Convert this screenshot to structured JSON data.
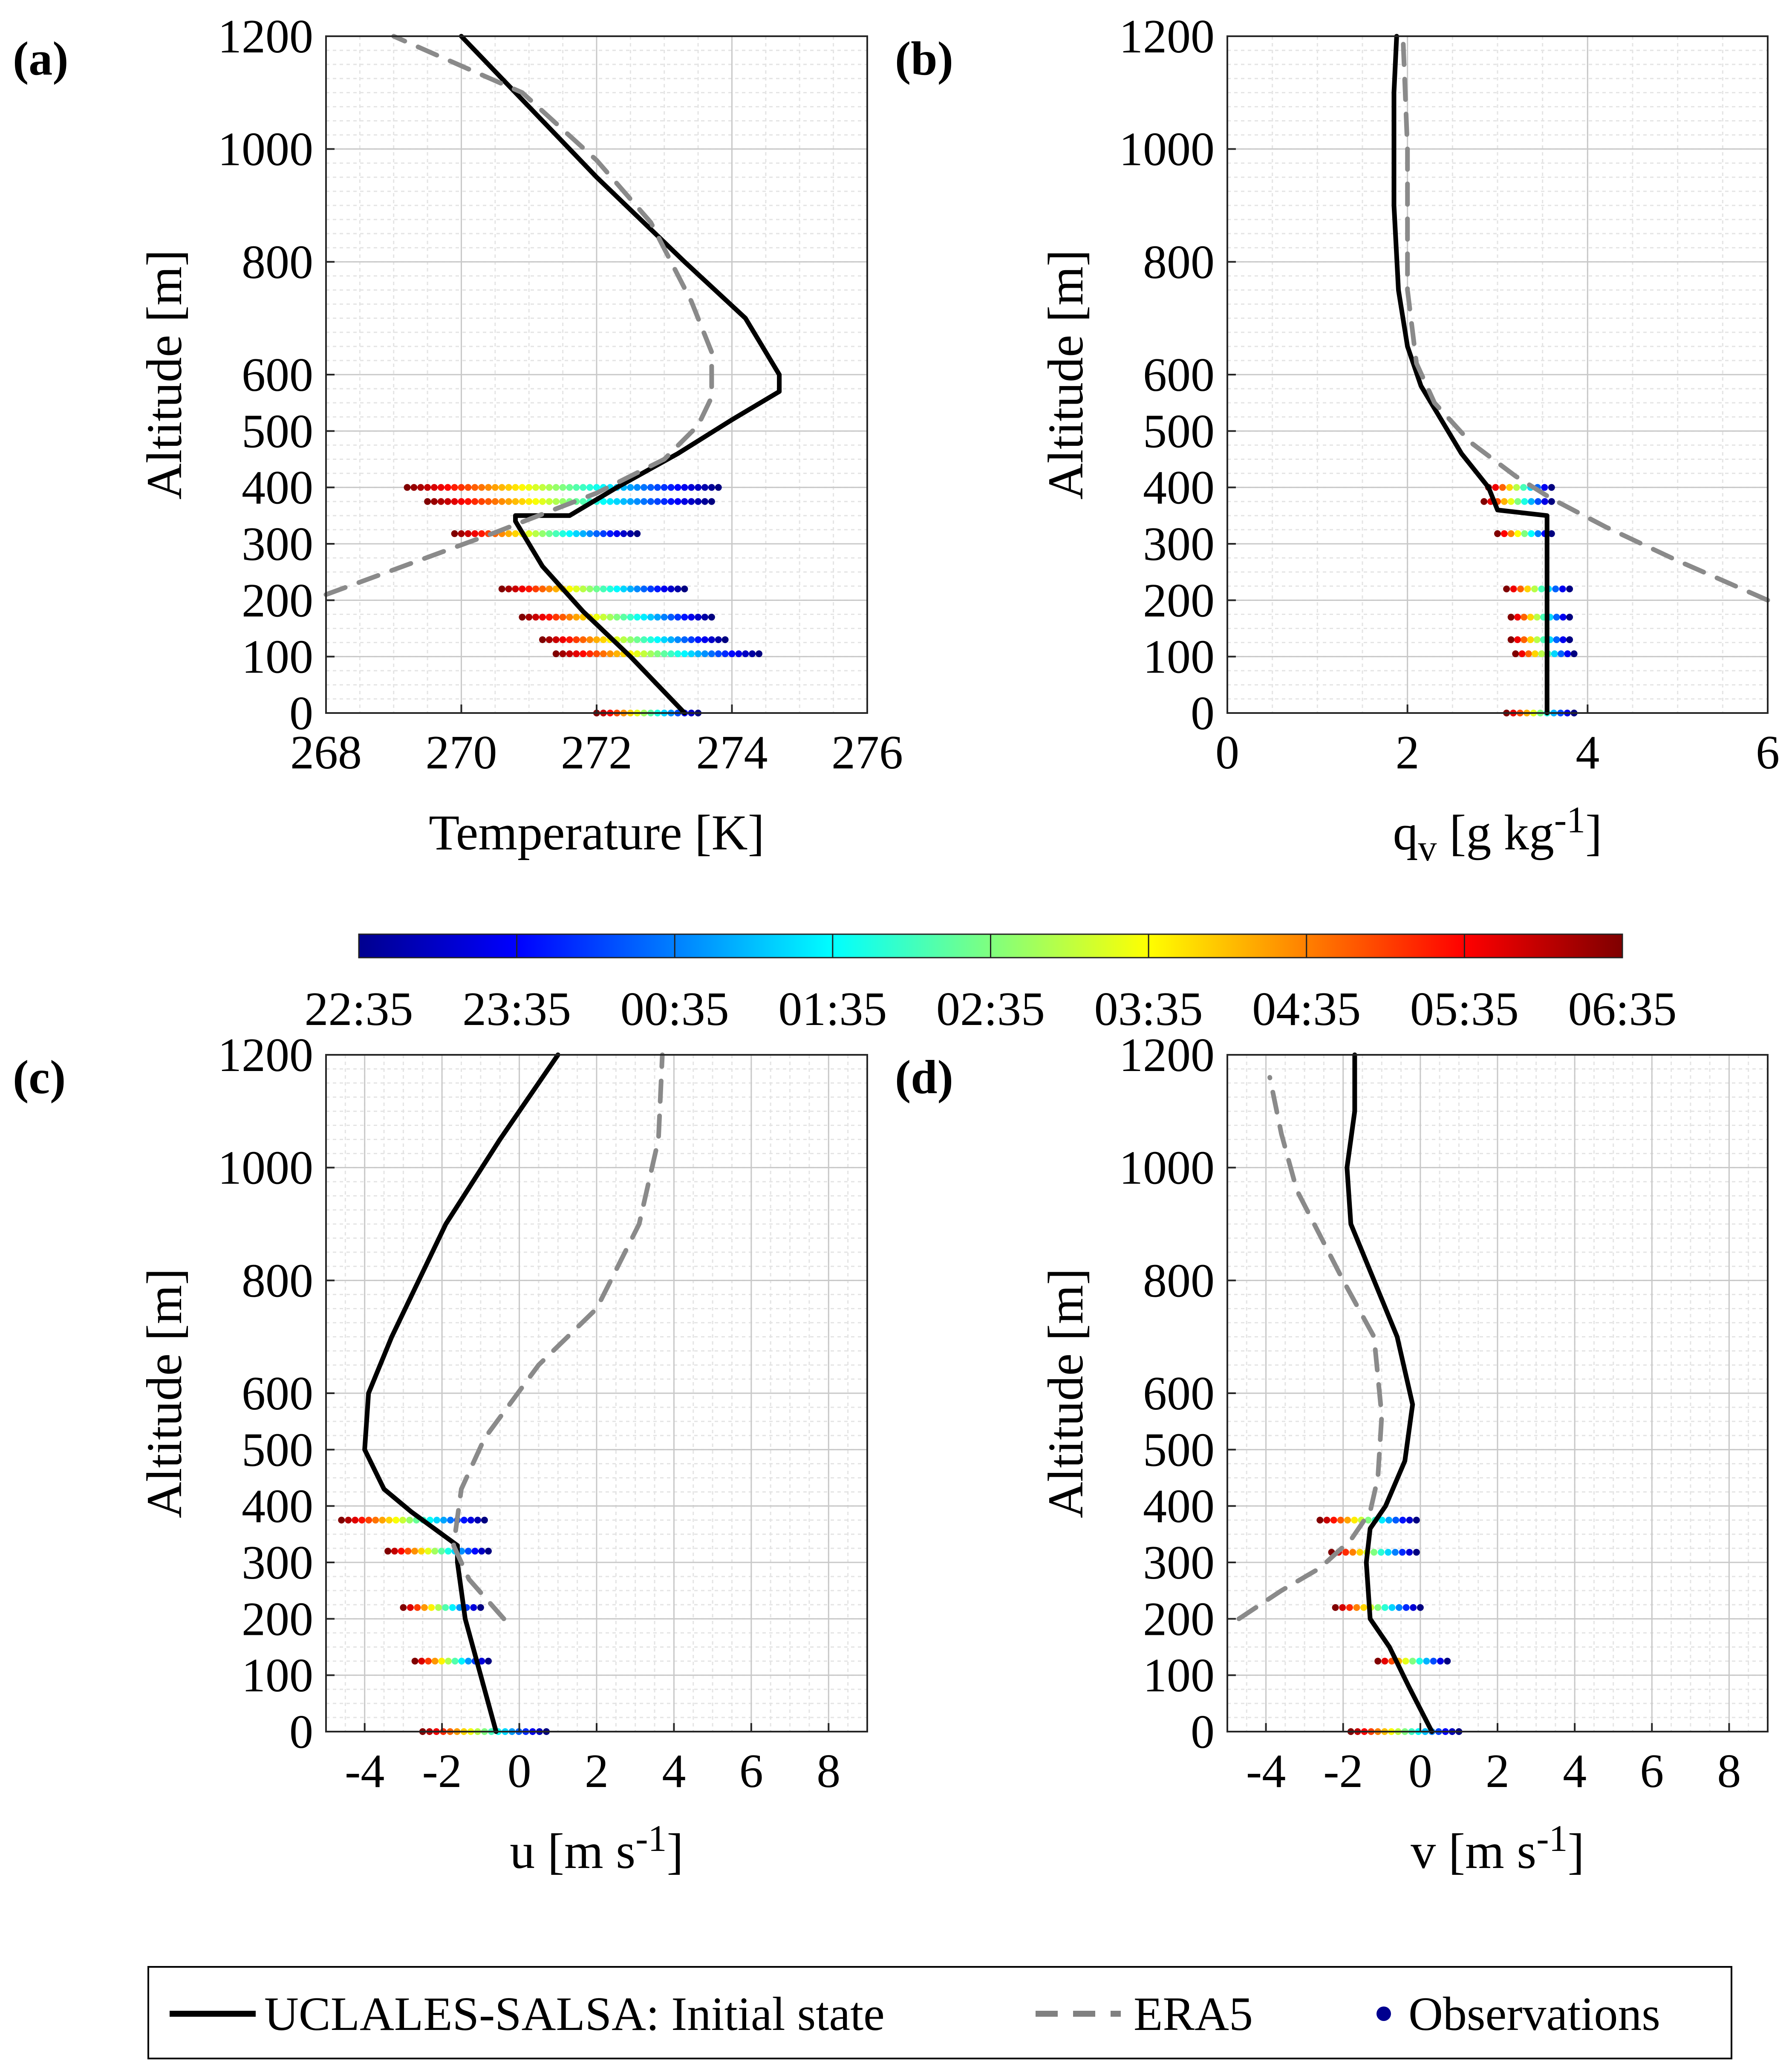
{
  "colorbar": {
    "ticks": [
      "22:35",
      "23:35",
      "00:35",
      "01:35",
      "02:35",
      "03:35",
      "04:35",
      "05:35",
      "06:35"
    ]
  },
  "legend": {
    "items": [
      {
        "label": "UCLALES-SALSA: Initial state",
        "style": "solid",
        "color": "#000000"
      },
      {
        "label": "ERA5",
        "style": "dashed",
        "color": "#808080"
      },
      {
        "label": "Observations",
        "style": "marker",
        "color": "#00008f"
      }
    ]
  },
  "chart_data": [
    {
      "type": "line",
      "panel_label": "(a)",
      "xlabel": "Temperature [K]",
      "ylabel": "Altitude [m]",
      "xlim": [
        268,
        276
      ],
      "ylim": [
        0,
        1200
      ],
      "xticks": [
        268,
        270,
        272,
        274,
        276
      ],
      "yticks": [
        0,
        100,
        200,
        300,
        400,
        500,
        600,
        800,
        1000,
        1200
      ],
      "grid": true,
      "series": [
        {
          "name": "UCLALES-SALSA: Initial state",
          "style": "solid",
          "x": [
            273.3,
            272.5,
            271.8,
            271.2,
            270.8,
            270.8,
            271.6,
            272.3,
            273.2,
            274.0,
            274.7,
            274.7,
            274.2,
            273.3,
            272.0,
            270.8,
            270.0
          ],
          "y": [
            0,
            100,
            180,
            260,
            340,
            350,
            350,
            400,
            460,
            520,
            570,
            600,
            700,
            800,
            950,
            1100,
            1200
          ]
        },
        {
          "name": "ERA5",
          "style": "dashed",
          "x": [
            268.0,
            270.5,
            272.0,
            273.0,
            273.5,
            273.7,
            273.7,
            273.4,
            272.8,
            272.0,
            270.9,
            269.0
          ],
          "y": [
            210,
            320,
            390,
            450,
            510,
            560,
            640,
            730,
            870,
            980,
            1100,
            1200
          ]
        },
        {
          "name": "Observations",
          "style": "marker",
          "rows": [
            {
              "y": 400,
              "x_start": 269.2,
              "x_end": 273.8
            },
            {
              "y": 375,
              "x_start": 269.5,
              "x_end": 273.7
            },
            {
              "y": 318,
              "x_start": 269.9,
              "x_end": 272.6
            },
            {
              "y": 220,
              "x_start": 270.6,
              "x_end": 273.3
            },
            {
              "y": 170,
              "x_start": 270.9,
              "x_end": 273.7
            },
            {
              "y": 130,
              "x_start": 271.2,
              "x_end": 273.9
            },
            {
              "y": 105,
              "x_start": 271.4,
              "x_end": 274.4
            },
            {
              "y": 0,
              "x_start": 272.0,
              "x_end": 273.5
            }
          ]
        }
      ]
    },
    {
      "type": "line",
      "panel_label": "(b)",
      "xlabel": "q",
      "xlabel_sub": "v",
      "xlabel_unit": "[g kg",
      "xlabel_sup": "-1",
      "xlabel_end": "]",
      "ylabel": "Altitude [m]",
      "xlim": [
        0,
        6
      ],
      "ylim": [
        0,
        1200
      ],
      "xticks": [
        0,
        2,
        4,
        6
      ],
      "yticks": [
        0,
        100,
        200,
        300,
        400,
        500,
        600,
        800,
        1000,
        1200
      ],
      "grid": true,
      "series": [
        {
          "name": "UCLALES-SALSA: Initial state",
          "style": "solid",
          "x": [
            3.55,
            3.55,
            3.55,
            3.0,
            2.9,
            2.6,
            2.3,
            2.15,
            2.0,
            1.9,
            1.85,
            1.85,
            1.88
          ],
          "y": [
            0,
            100,
            350,
            360,
            400,
            460,
            540,
            580,
            650,
            750,
            900,
            1100,
            1200
          ]
        },
        {
          "name": "ERA5",
          "style": "dashed",
          "x": [
            6.0,
            5.0,
            4.2,
            3.6,
            3.2,
            2.7,
            2.3,
            2.1,
            2.0,
            2.0,
            1.95
          ],
          "y": [
            200,
            270,
            330,
            380,
            420,
            480,
            550,
            620,
            750,
            1000,
            1200
          ]
        },
        {
          "name": "Observations",
          "style": "marker",
          "rows": [
            {
              "y": 400,
              "x_start": 2.9,
              "x_end": 3.6
            },
            {
              "y": 375,
              "x_start": 2.85,
              "x_end": 3.6
            },
            {
              "y": 318,
              "x_start": 3.0,
              "x_end": 3.6
            },
            {
              "y": 220,
              "x_start": 3.1,
              "x_end": 3.8
            },
            {
              "y": 170,
              "x_start": 3.15,
              "x_end": 3.8
            },
            {
              "y": 130,
              "x_start": 3.15,
              "x_end": 3.8
            },
            {
              "y": 105,
              "x_start": 3.2,
              "x_end": 3.85
            },
            {
              "y": 0,
              "x_start": 3.1,
              "x_end": 3.85
            }
          ]
        }
      ]
    },
    {
      "type": "line",
      "panel_label": "(c)",
      "xlabel": "u [m s",
      "xlabel_sup": "-1",
      "xlabel_end": "]",
      "ylabel": "Altitude [m]",
      "xlim": [
        -5,
        9
      ],
      "ylim": [
        0,
        1200
      ],
      "xticks": [
        -4,
        -2,
        0,
        2,
        4,
        6,
        8
      ],
      "yticks": [
        0,
        100,
        200,
        300,
        400,
        500,
        600,
        800,
        1000,
        1200
      ],
      "grid": true,
      "series": [
        {
          "name": "UCLALES-SALSA: Initial state",
          "style": "solid",
          "x": [
            -0.6,
            -1.0,
            -1.4,
            -1.6,
            -1.6,
            -2.2,
            -2.8,
            -3.5,
            -4.0,
            -3.9,
            -3.3,
            -1.9,
            -0.5,
            1.0
          ],
          "y": [
            0,
            100,
            200,
            300,
            330,
            360,
            390,
            430,
            500,
            600,
            700,
            900,
            1050,
            1200
          ]
        },
        {
          "name": "ERA5",
          "style": "dashed",
          "x": [
            -0.4,
            -1.3,
            -1.7,
            -1.5,
            -0.9,
            0.5,
            2.0,
            3.1,
            3.6,
            3.7
          ],
          "y": [
            200,
            270,
            330,
            430,
            520,
            650,
            750,
            900,
            1050,
            1200
          ]
        },
        {
          "name": "Observations",
          "style": "marker",
          "rows": [
            {
              "y": 375,
              "x_start": -4.6,
              "x_end": -0.9
            },
            {
              "y": 320,
              "x_start": -3.4,
              "x_end": -0.8
            },
            {
              "y": 220,
              "x_start": -3.0,
              "x_end": -1.0
            },
            {
              "y": 125,
              "x_start": -2.7,
              "x_end": -0.8
            },
            {
              "y": 0,
              "x_start": -2.5,
              "x_end": 0.7
            }
          ]
        }
      ]
    },
    {
      "type": "line",
      "panel_label": "(d)",
      "xlabel": "v [m s",
      "xlabel_sup": "-1",
      "xlabel_end": "]",
      "ylabel": "Altitude [m]",
      "xlim": [
        -5,
        9
      ],
      "ylim": [
        0,
        1200
      ],
      "xticks": [
        -4,
        -2,
        0,
        2,
        4,
        6,
        8
      ],
      "yticks": [
        0,
        100,
        200,
        300,
        400,
        500,
        600,
        800,
        1000,
        1200
      ],
      "grid": true,
      "series": [
        {
          "name": "UCLALES-SALSA: Initial state",
          "style": "solid",
          "x": [
            0.3,
            -0.3,
            -0.8,
            -1.3,
            -1.4,
            -1.3,
            -0.9,
            -0.4,
            -0.2,
            -0.6,
            -1.2,
            -1.8,
            -1.9,
            -1.7,
            -1.7
          ],
          "y": [
            0,
            80,
            150,
            200,
            300,
            360,
            400,
            480,
            580,
            700,
            800,
            900,
            1000,
            1100,
            1200
          ]
        },
        {
          "name": "ERA5",
          "style": "dashed",
          "x": [
            -4.7,
            -3.6,
            -2.6,
            -1.8,
            -1.3,
            -1.1,
            -1.0,
            -1.2,
            -2.0,
            -3.2,
            -3.6,
            -3.9
          ],
          "y": [
            200,
            250,
            290,
            340,
            390,
            450,
            560,
            700,
            800,
            960,
            1060,
            1160
          ]
        },
        {
          "name": "Observations",
          "style": "marker",
          "rows": [
            {
              "y": 375,
              "x_start": -2.6,
              "x_end": -0.1
            },
            {
              "y": 318,
              "x_start": -2.3,
              "x_end": -0.1
            },
            {
              "y": 220,
              "x_start": -2.2,
              "x_end": 0.0
            },
            {
              "y": 125,
              "x_start": -1.1,
              "x_end": 0.7
            },
            {
              "y": 0,
              "x_start": -1.8,
              "x_end": 1.0
            }
          ]
        }
      ]
    }
  ]
}
